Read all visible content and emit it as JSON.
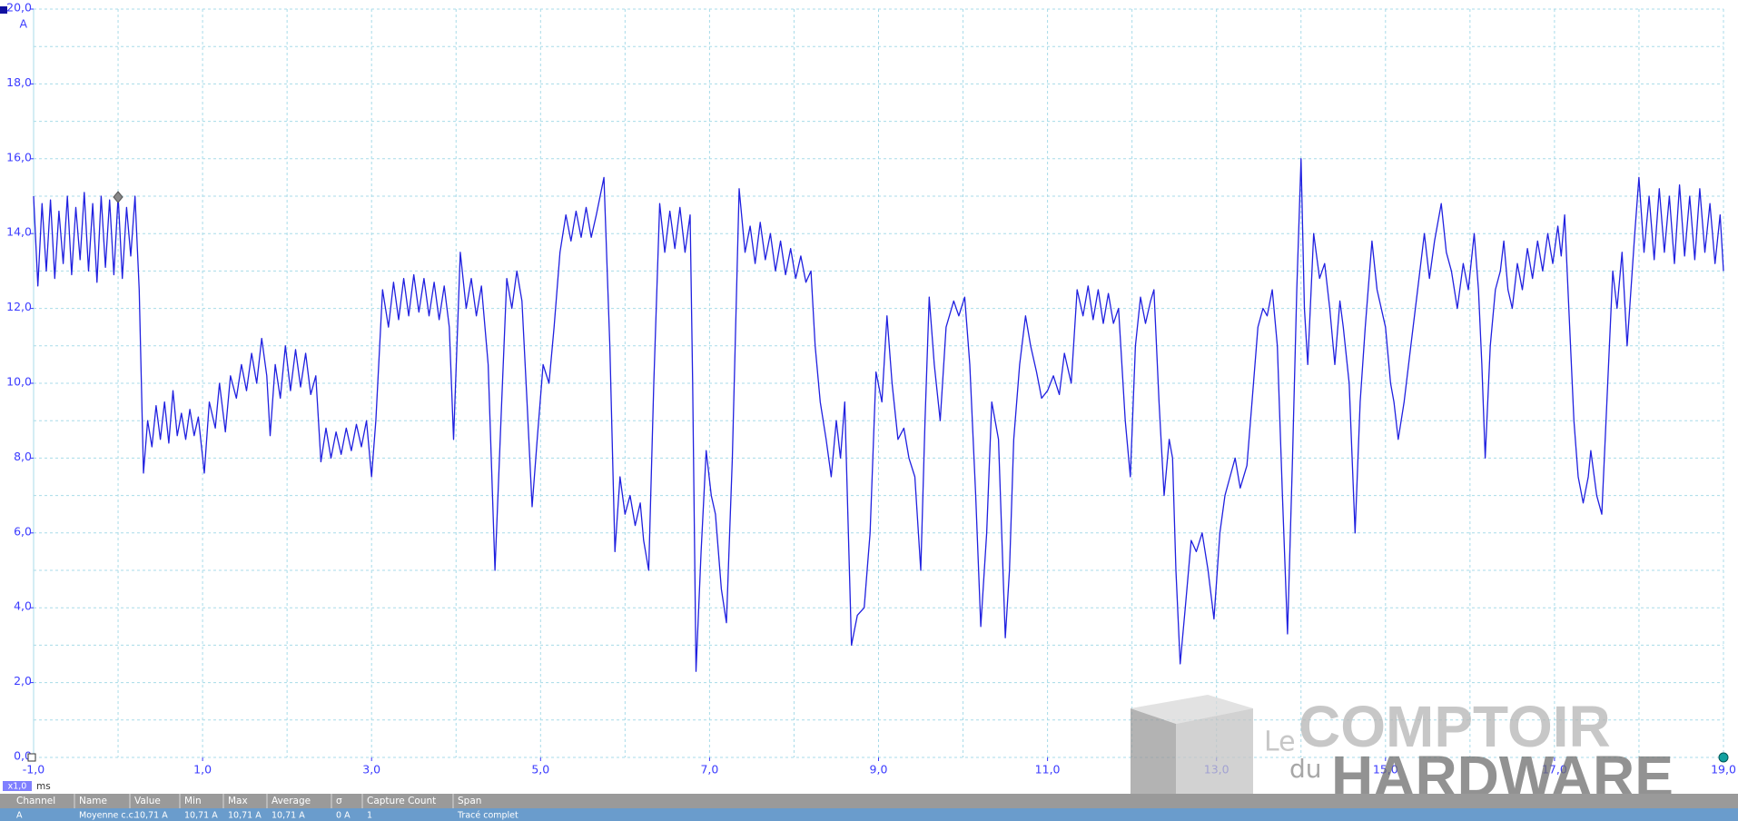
{
  "chart_data": {
    "type": "line",
    "y_unit": "A",
    "x_unit": "ms",
    "zoom": "x1,0",
    "grid": true,
    "xlim": [
      -1,
      19
    ],
    "ylim": [
      0,
      20
    ],
    "xticks": [
      {
        "value": -1,
        "label": "-1,0"
      },
      {
        "value": 1,
        "label": "1,0"
      },
      {
        "value": 3,
        "label": "3,0"
      },
      {
        "value": 5,
        "label": "5,0"
      },
      {
        "value": 7,
        "label": "7,0"
      },
      {
        "value": 9,
        "label": "9,0"
      },
      {
        "value": 11,
        "label": "11,0"
      },
      {
        "value": 13,
        "label": "13,0"
      },
      {
        "value": 15,
        "label": "15,0"
      },
      {
        "value": 17,
        "label": "17,0"
      },
      {
        "value": 19,
        "label": "19,0"
      }
    ],
    "yticks": [
      {
        "value": 0,
        "label": "0,0"
      },
      {
        "value": 2,
        "label": "2,0"
      },
      {
        "value": 4,
        "label": "4,0"
      },
      {
        "value": 6,
        "label": "6,0"
      },
      {
        "value": 8,
        "label": "8,0"
      },
      {
        "value": 10,
        "label": "10,0"
      },
      {
        "value": 12,
        "label": "12,0"
      },
      {
        "value": 14,
        "label": "14,0"
      },
      {
        "value": 16,
        "label": "16,0"
      },
      {
        "value": 18,
        "label": "18,0"
      },
      {
        "value": 20,
        "label": "20,0"
      }
    ],
    "xgrid": [
      -1,
      0,
      1,
      2,
      3,
      4,
      5,
      6,
      7,
      8,
      9,
      10,
      11,
      12,
      13,
      14,
      15,
      16,
      17,
      18,
      19
    ],
    "ygrid": [
      0,
      1,
      2,
      3,
      4,
      5,
      6,
      7,
      8,
      9,
      10,
      11,
      12,
      13,
      14,
      15,
      16,
      17,
      18,
      19,
      20
    ],
    "series": [
      {
        "color": "#2020e0",
        "x": [
          -1.0,
          -0.95,
          -0.9,
          -0.85,
          -0.8,
          -0.75,
          -0.7,
          -0.65,
          -0.6,
          -0.55,
          -0.5,
          -0.45,
          -0.4,
          -0.35,
          -0.3,
          -0.25,
          -0.2,
          -0.15,
          -0.1,
          -0.05,
          0.0,
          0.05,
          0.1,
          0.15,
          0.2,
          0.25,
          0.3,
          0.35,
          0.4,
          0.45,
          0.5,
          0.55,
          0.6,
          0.65,
          0.7,
          0.75,
          0.8,
          0.85,
          0.9,
          0.95,
          1.02,
          1.08,
          1.15,
          1.2,
          1.27,
          1.33,
          1.4,
          1.46,
          1.52,
          1.58,
          1.64,
          1.7,
          1.76,
          1.8,
          1.86,
          1.92,
          1.98,
          2.04,
          2.1,
          2.16,
          2.22,
          2.28,
          2.34,
          2.4,
          2.46,
          2.52,
          2.58,
          2.64,
          2.7,
          2.76,
          2.82,
          2.88,
          2.94,
          3.0,
          3.05,
          3.13,
          3.2,
          3.26,
          3.32,
          3.38,
          3.44,
          3.5,
          3.56,
          3.62,
          3.68,
          3.74,
          3.8,
          3.86,
          3.92,
          3.97,
          4.05,
          4.12,
          4.18,
          4.24,
          4.3,
          4.38,
          4.46,
          4.54,
          4.6,
          4.66,
          4.72,
          4.78,
          4.84,
          4.9,
          4.96,
          5.03,
          5.1,
          5.16,
          5.23,
          5.3,
          5.36,
          5.42,
          5.48,
          5.54,
          5.6,
          5.66,
          5.75,
          5.82,
          5.88,
          5.94,
          6.0,
          6.06,
          6.12,
          6.18,
          6.22,
          6.28,
          6.34,
          6.41,
          6.47,
          6.53,
          6.59,
          6.65,
          6.71,
          6.77,
          6.8,
          6.84,
          6.9,
          6.96,
          7.02,
          7.07,
          7.14,
          7.2,
          7.27,
          7.35,
          7.42,
          7.48,
          7.54,
          7.6,
          7.66,
          7.72,
          7.78,
          7.84,
          7.9,
          7.96,
          8.02,
          8.08,
          8.14,
          8.2,
          8.25,
          8.31,
          8.38,
          8.44,
          8.5,
          8.55,
          8.6,
          8.68,
          8.75,
          8.83,
          8.9,
          8.97,
          9.04,
          9.1,
          9.16,
          9.23,
          9.3,
          9.36,
          9.43,
          9.5,
          9.55,
          9.6,
          9.66,
          9.73,
          9.8,
          9.89,
          9.95,
          10.02,
          10.08,
          10.15,
          10.21,
          10.28,
          10.34,
          10.42,
          10.5,
          10.55,
          10.6,
          10.67,
          10.74,
          10.8,
          10.87,
          10.93,
          11.0,
          11.07,
          11.14,
          11.2,
          11.28,
          11.35,
          11.42,
          11.48,
          11.54,
          11.6,
          11.66,
          11.72,
          11.78,
          11.84,
          11.92,
          11.98,
          12.04,
          12.1,
          12.16,
          12.22,
          12.26,
          12.32,
          12.38,
          12.44,
          12.48,
          12.52,
          12.57,
          12.63,
          12.7,
          12.76,
          12.83,
          12.9,
          12.97,
          13.04,
          13.1,
          13.16,
          13.22,
          13.28,
          13.36,
          13.42,
          13.49,
          13.55,
          13.6,
          13.66,
          13.72,
          13.78,
          13.84,
          13.9,
          13.95,
          14.0,
          14.04,
          14.08,
          14.15,
          14.22,
          14.28,
          14.34,
          14.4,
          14.46,
          14.5,
          14.57,
          14.64,
          14.7,
          14.76,
          14.84,
          14.9,
          15.0,
          15.06,
          15.1,
          15.15,
          15.22,
          15.3,
          15.38,
          15.46,
          15.52,
          15.58,
          15.66,
          15.72,
          15.78,
          15.85,
          15.92,
          15.98,
          16.05,
          16.1,
          16.14,
          16.18,
          16.24,
          16.3,
          16.36,
          16.4,
          16.45,
          16.5,
          16.56,
          16.62,
          16.68,
          16.74,
          16.8,
          16.86,
          16.92,
          16.98,
          17.04,
          17.08,
          17.12,
          17.17,
          17.23,
          17.28,
          17.34,
          17.4,
          17.43,
          17.5,
          17.56,
          17.62,
          17.69,
          17.74,
          17.8,
          17.86,
          17.92,
          17.95,
          18.0,
          18.06,
          18.12,
          18.18,
          18.24,
          18.3,
          18.36,
          18.42,
          18.48,
          18.54,
          18.6,
          18.66,
          18.72,
          18.78,
          18.84,
          18.9,
          18.96,
          19.0
        ],
        "values": [
          15.0,
          12.6,
          14.8,
          13.0,
          14.9,
          12.8,
          14.6,
          13.2,
          15.0,
          12.9,
          14.7,
          13.3,
          15.1,
          13.0,
          14.8,
          12.7,
          15.0,
          13.1,
          14.9,
          12.9,
          15.0,
          12.8,
          14.7,
          13.4,
          15.0,
          12.5,
          7.6,
          9.0,
          8.3,
          9.4,
          8.5,
          9.5,
          8.4,
          9.8,
          8.6,
          9.2,
          8.5,
          9.3,
          8.6,
          9.1,
          7.6,
          9.5,
          8.8,
          10.0,
          8.7,
          10.2,
          9.6,
          10.5,
          9.8,
          10.8,
          10.0,
          11.2,
          10.2,
          8.6,
          10.5,
          9.6,
          11.0,
          9.8,
          10.9,
          9.9,
          10.8,
          9.7,
          10.2,
          7.9,
          8.8,
          8.0,
          8.7,
          8.1,
          8.8,
          8.2,
          8.9,
          8.3,
          9.0,
          7.5,
          9.0,
          12.5,
          11.5,
          12.7,
          11.7,
          12.8,
          11.8,
          12.9,
          11.9,
          12.8,
          11.8,
          12.7,
          11.7,
          12.6,
          11.5,
          8.5,
          13.5,
          12.0,
          12.8,
          11.8,
          12.6,
          10.5,
          5.0,
          9.5,
          12.8,
          12.0,
          13.0,
          12.2,
          9.5,
          6.7,
          8.5,
          10.5,
          10.0,
          11.5,
          13.5,
          14.5,
          13.8,
          14.6,
          13.9,
          14.7,
          13.9,
          14.5,
          15.5,
          11.0,
          5.5,
          7.5,
          6.5,
          7.0,
          6.2,
          6.8,
          5.8,
          5.0,
          10.0,
          14.8,
          13.5,
          14.6,
          13.6,
          14.7,
          13.5,
          14.5,
          10.0,
          2.3,
          5.5,
          8.2,
          7.0,
          6.5,
          4.5,
          3.6,
          8.0,
          15.2,
          13.5,
          14.2,
          13.2,
          14.3,
          13.3,
          14.0,
          13.0,
          13.8,
          12.9,
          13.6,
          12.8,
          13.4,
          12.7,
          13.0,
          11.0,
          9.5,
          8.5,
          7.5,
          9.0,
          8.0,
          9.5,
          3.0,
          3.8,
          4.0,
          6.0,
          10.3,
          9.5,
          11.8,
          10.0,
          8.5,
          8.8,
          8.0,
          7.5,
          5.0,
          9.0,
          12.3,
          10.5,
          9.0,
          11.5,
          12.2,
          11.8,
          12.3,
          10.5,
          7.0,
          3.5,
          6.0,
          9.5,
          8.5,
          3.2,
          5.0,
          8.5,
          10.5,
          11.8,
          11.0,
          10.3,
          9.6,
          9.8,
          10.2,
          9.7,
          10.8,
          10.0,
          12.5,
          11.8,
          12.6,
          11.7,
          12.5,
          11.6,
          12.4,
          11.6,
          12.0,
          9.0,
          7.5,
          11.0,
          12.3,
          11.6,
          12.2,
          12.5,
          9.5,
          7.0,
          8.5,
          8.0,
          5.0,
          2.5,
          4.0,
          5.8,
          5.5,
          6.0,
          5.0,
          3.7,
          6.0,
          7.0,
          7.5,
          8.0,
          7.2,
          7.8,
          9.5,
          11.5,
          12.0,
          11.8,
          12.5,
          11.0,
          7.0,
          3.3,
          8.0,
          12.5,
          16.0,
          12.0,
          10.5,
          14.0,
          12.8,
          13.2,
          12.0,
          10.5,
          12.2,
          11.5,
          10.0,
          6.0,
          9.5,
          11.5,
          13.8,
          12.5,
          11.5,
          10.0,
          9.5,
          8.5,
          9.5,
          11.0,
          12.5,
          14.0,
          12.8,
          13.8,
          14.8,
          13.5,
          13.0,
          12.0,
          13.2,
          12.5,
          14.0,
          12.5,
          10.5,
          8.0,
          11.0,
          12.5,
          13.0,
          13.8,
          12.5,
          12.0,
          13.2,
          12.5,
          13.6,
          12.8,
          13.8,
          13.0,
          14.0,
          13.2,
          14.2,
          13.4,
          14.5,
          12.0,
          9.0,
          7.5,
          6.8,
          7.5,
          8.2,
          7.0,
          6.5,
          9.5,
          13.0,
          12.0,
          13.5,
          11.0,
          13.0,
          14.0,
          15.5,
          13.5,
          15.0,
          13.3,
          15.2,
          13.5,
          15.0,
          13.2,
          15.3,
          13.4,
          15.0,
          13.3,
          15.2,
          13.5,
          14.8,
          13.2,
          14.5,
          13.0
        ]
      }
    ]
  },
  "table": {
    "headers": [
      "Channel",
      "Name",
      "Value",
      "Min",
      "Max",
      "Average",
      "σ",
      "Capture Count",
      "Span"
    ],
    "rows": [
      [
        "A",
        "Moyenne c.c.",
        "10,71 A",
        "10,71 A",
        "10,71 A",
        "10,71 A",
        "0 A",
        "1",
        "Tracé complet"
      ]
    ]
  },
  "watermark": {
    "small_top": "Le",
    "big_top": "COMPTOIR",
    "small_bottom": "du",
    "big_bottom": "HARDWARE"
  }
}
